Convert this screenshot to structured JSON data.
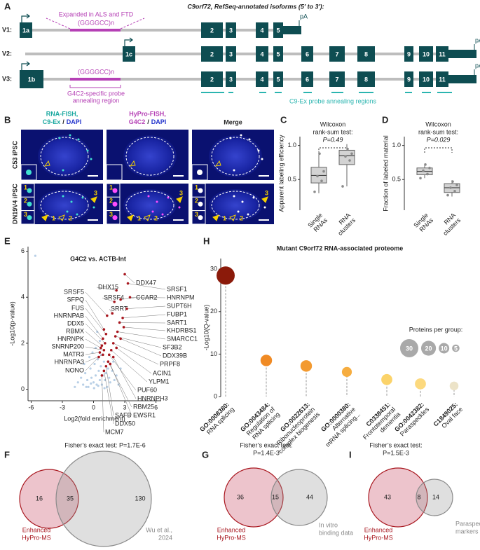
{
  "panel_labels": [
    "A",
    "B",
    "C",
    "D",
    "E",
    "F",
    "G",
    "H",
    "I"
  ],
  "gene_diagram": {
    "title": "C9orf72, RefSeq-annotated isoforms (5′ to 3′):",
    "isoforms": [
      {
        "name": "V1:",
        "exons": [
          "1a",
          "2",
          "3",
          "4",
          "5"
        ],
        "polyA": "pA"
      },
      {
        "name": "V2:",
        "exons": [
          "1c",
          "2",
          "3",
          "4",
          "5",
          "6",
          "7",
          "8",
          "9",
          "10",
          "11"
        ],
        "polyA": "pA"
      },
      {
        "name": "V3:",
        "exons": [
          "1b",
          "2",
          "3",
          "4",
          "5",
          "6",
          "7",
          "8",
          "9",
          "10",
          "11"
        ],
        "polyA": "pA"
      }
    ],
    "repeat": "(GGGGCC)n",
    "repeat_note": "Expanded in ALS and FTD",
    "g4c2_probe": [
      "G4C2-specific probe",
      "annealing region"
    ],
    "c9ex_probe": "C9-Ex probe annealing regions"
  },
  "microscopy": {
    "columns": [
      {
        "line1": "RNA-FISH,",
        "probe": "C9-Ex",
        "sep": "/",
        "stain": "DAPI"
      },
      {
        "line1": "HyPro-FISH,",
        "probe": "G4C2",
        "sep": "/",
        "stain": "DAPI"
      },
      {
        "line1": "Merge"
      }
    ],
    "rows": [
      "C53 iPSC",
      "DN19V4 iPSC"
    ],
    "callouts": [
      "1",
      "2",
      "3"
    ]
  },
  "chart_data": [
    {
      "type": "box",
      "ylabel": "Apparent labeling efficiency",
      "annotation": [
        "Wilcoxon",
        "rank-sum test:",
        "P=0.49"
      ],
      "categories": [
        [
          "Single",
          "RNAs"
        ],
        [
          "RNA",
          "clusters"
        ]
      ],
      "boxes": [
        {
          "min": 0.3,
          "q1": 0.45,
          "median": 0.56,
          "q3": 0.68,
          "max": 0.92
        },
        {
          "min": 0.4,
          "q1": 0.72,
          "median": 0.85,
          "q3": 0.93,
          "max": 1.02
        }
      ],
      "points": [
        [
          0.32,
          0.48,
          0.55,
          0.62,
          0.88
        ],
        [
          0.4,
          0.78,
          0.84,
          0.88,
          0.95
        ]
      ],
      "ylim": [
        0.05,
        1.13
      ],
      "yticks": [
        0.5,
        {
          "value": 1,
          "label": "1.0"
        }
      ]
    },
    {
      "type": "box",
      "ylabel": "Fraction of labeled material",
      "annotation": [
        "Wilcoxon",
        "rank-sum test:",
        "P=0.029"
      ],
      "categories": [
        [
          "Single",
          "RNAs"
        ],
        [
          "RNA",
          "clusters"
        ]
      ],
      "boxes": [
        {
          "min": 0.52,
          "q1": 0.57,
          "median": 0.62,
          "q3": 0.67,
          "max": 0.72
        },
        {
          "min": 0.25,
          "q1": 0.31,
          "median": 0.38,
          "q3": 0.44,
          "max": 0.49
        }
      ],
      "points": [
        [
          0.52,
          0.58,
          0.63,
          0.67,
          0.72
        ],
        [
          0.27,
          0.33,
          0.38,
          0.42,
          0.47
        ]
      ],
      "ylim": [
        0.05,
        1.13
      ],
      "yticks": [
        0.5,
        {
          "value": 1,
          "label": "1.0"
        }
      ]
    },
    {
      "type": "scatter",
      "title": "G4C2 vs. ACTB-Int",
      "xlabel": "Log2(fold enrichment)",
      "ylabel": "-Log10(p-value)",
      "xlim": [
        -6.3,
        6.5
      ],
      "ylim": [
        -0.5,
        6.2
      ],
      "xticks": [
        -6,
        -3,
        0,
        3,
        6
      ],
      "yticks": [
        0,
        2,
        4,
        6
      ],
      "series": [
        {
          "color": "#b8cfe6",
          "x": [
            -5.6,
            -1.5,
            -1.2,
            -1.0,
            -0.8,
            -0.6,
            -0.5,
            -0.3,
            -0.2,
            0,
            0.1,
            0.2,
            0.3,
            0.4,
            0.5,
            0.6,
            0.7,
            0.8,
            0.9,
            1.0,
            1.1,
            1.2,
            1.3,
            1.4,
            1.5,
            1.6,
            1.8,
            2.0,
            2.2,
            2.4,
            -0.9,
            -0.4,
            0.2,
            0.6,
            -0.1,
            0.35,
            -1.8,
            1.9,
            2.6,
            -0.7,
            0.05,
            0.45,
            1.05,
            -0.25,
            0.75
          ],
          "y": [
            5.8,
            0.3,
            0.5,
            0.2,
            0.7,
            0.4,
            0.1,
            0.9,
            0.5,
            0.3,
            1.1,
            0.6,
            0.2,
            1.3,
            0.8,
            0.4,
            1.0,
            0.2,
            0.6,
            1.2,
            0.4,
            0.7,
            0.1,
            0.9,
            0.5,
            0.3,
            0.8,
            0.4,
            0.6,
            0.2,
            1.1,
            1.4,
            1.8,
            2.1,
            1.6,
            2.5,
            0.1,
            1.2,
            0.9,
            0.1,
            0.05,
            0.15,
            0.05,
            0.25,
            1.5
          ]
        },
        {
          "color": "#a8161e",
          "labels": [
            "SRSF5",
            "SFPQ",
            "FUS",
            "HNRNPAB",
            "DDX5",
            "RBMX",
            "HNRNPK",
            "SNRNP200",
            "MATR3",
            "HNRNPA3",
            "NONO",
            "DHX15",
            "DDX47",
            "SRSF1",
            "SRSF4",
            "CCAR2",
            "HNRNPM",
            "SRRT",
            "SUPT6H",
            "FUBP1",
            "SART1",
            "KHDRBS1",
            "SMARCC1",
            "SF3B2",
            "DDX39B",
            "PRPF8",
            "ACIN1",
            "YLPM1",
            "PUF60",
            "HNRNPH3",
            "RBM25",
            "SAFB",
            "EWSR1",
            "DDX50",
            "MCM7"
          ],
          "x": [
            1.3,
            1.0,
            1.2,
            0.9,
            1.1,
            0.8,
            0.7,
            1.0,
            0.6,
            0.9,
            0.5,
            2.2,
            3.0,
            3.3,
            2.0,
            2.6,
            3.5,
            1.8,
            3.2,
            2.8,
            2.5,
            2.9,
            2.3,
            2.1,
            2.6,
            1.9,
            2.2,
            1.7,
            1.5,
            1.9,
            1.4,
            1.2,
            1.6,
            1.0,
            0.8
          ],
          "y": [
            3.2,
            2.6,
            2.4,
            2.2,
            2.0,
            1.9,
            1.8,
            1.7,
            1.6,
            1.5,
            1.4,
            4.3,
            5.0,
            4.6,
            3.8,
            3.9,
            4.0,
            3.3,
            3.5,
            3.1,
            2.9,
            2.7,
            2.5,
            2.3,
            2.2,
            2.0,
            1.8,
            1.7,
            1.5,
            1.4,
            1.2,
            1.0,
            1.1,
            0.8,
            0.6
          ]
        }
      ]
    },
    {
      "type": "bubble",
      "title": "Mutant C9orf72 RNA-associated proteome",
      "ylabel": "-Log10(Q-value)",
      "ylim": [
        0,
        32.5
      ],
      "yticks": [
        0,
        10,
        20,
        30
      ],
      "categories": [
        {
          "id": "GO:0008380:",
          "name": [
            "RNA splicing"
          ]
        },
        {
          "id": "GO:0043484:",
          "name": [
            "Regulation of",
            "RNA splicing"
          ]
        },
        {
          "id": "GO:0022613:",
          "name": [
            "Ribonucleoprotein",
            "complex biogenesis"
          ]
        },
        {
          "id": "GO:0000380:",
          "name": [
            "Alternative",
            "mRNA splicing..."
          ]
        },
        {
          "id": "C0338451:",
          "name": [
            "Frontotemporal",
            "dementia"
          ]
        },
        {
          "id": "GO:0042382:",
          "name": [
            "Paraspeckles"
          ]
        },
        {
          "id": "C1849025:",
          "name": [
            "Oval face"
          ]
        }
      ],
      "values": [
        28.5,
        8.5,
        7.2,
        5.8,
        4.0,
        3.0,
        2.5
      ],
      "sizes": [
        30,
        12,
        12,
        9,
        11,
        11,
        7
      ],
      "colors": [
        "#8b1a0a",
        "#f08a24",
        "#f39a30",
        "#f6ad40",
        "#fbd36a",
        "#fcd97e",
        "#ece3c8"
      ],
      "size_legend": {
        "title": "Proteins per group:",
        "sizes": [
          30,
          20,
          10,
          5
        ]
      }
    },
    {
      "type": "venn",
      "title": [
        "Fisher’s exact test: P=1.7E-6"
      ],
      "sets": [
        {
          "name": [
            "Enhanced",
            "HyPro-MS"
          ],
          "only": 16,
          "color": "#a8161e"
        },
        {
          "name": [
            "Wu et al.,",
            "2024"
          ],
          "only": 130,
          "color": "#8a8a8a"
        }
      ],
      "overlap": 35
    },
    {
      "type": "venn",
      "title": [
        "Fisher’s exact test:",
        "P=1.4E-3"
      ],
      "sets": [
        {
          "name": [
            "Enhanced",
            "HyPro-MS"
          ],
          "only": 36,
          "color": "#a8161e"
        },
        {
          "name": [
            "In vitro",
            "binding data"
          ],
          "only": 44,
          "color": "#8a8a8a"
        }
      ],
      "overlap": 15
    },
    {
      "type": "venn",
      "title": [
        "Fisher’s exact test:",
        "P=1.5E-3"
      ],
      "sets": [
        {
          "name": [
            "Enhanced",
            "HyPro-MS"
          ],
          "only": 43,
          "color": "#a8161e"
        },
        {
          "name": [
            "Paraspeckle",
            "markers"
          ],
          "only": 14,
          "color": "#8a8a8a"
        }
      ],
      "overlap": 8
    }
  ]
}
